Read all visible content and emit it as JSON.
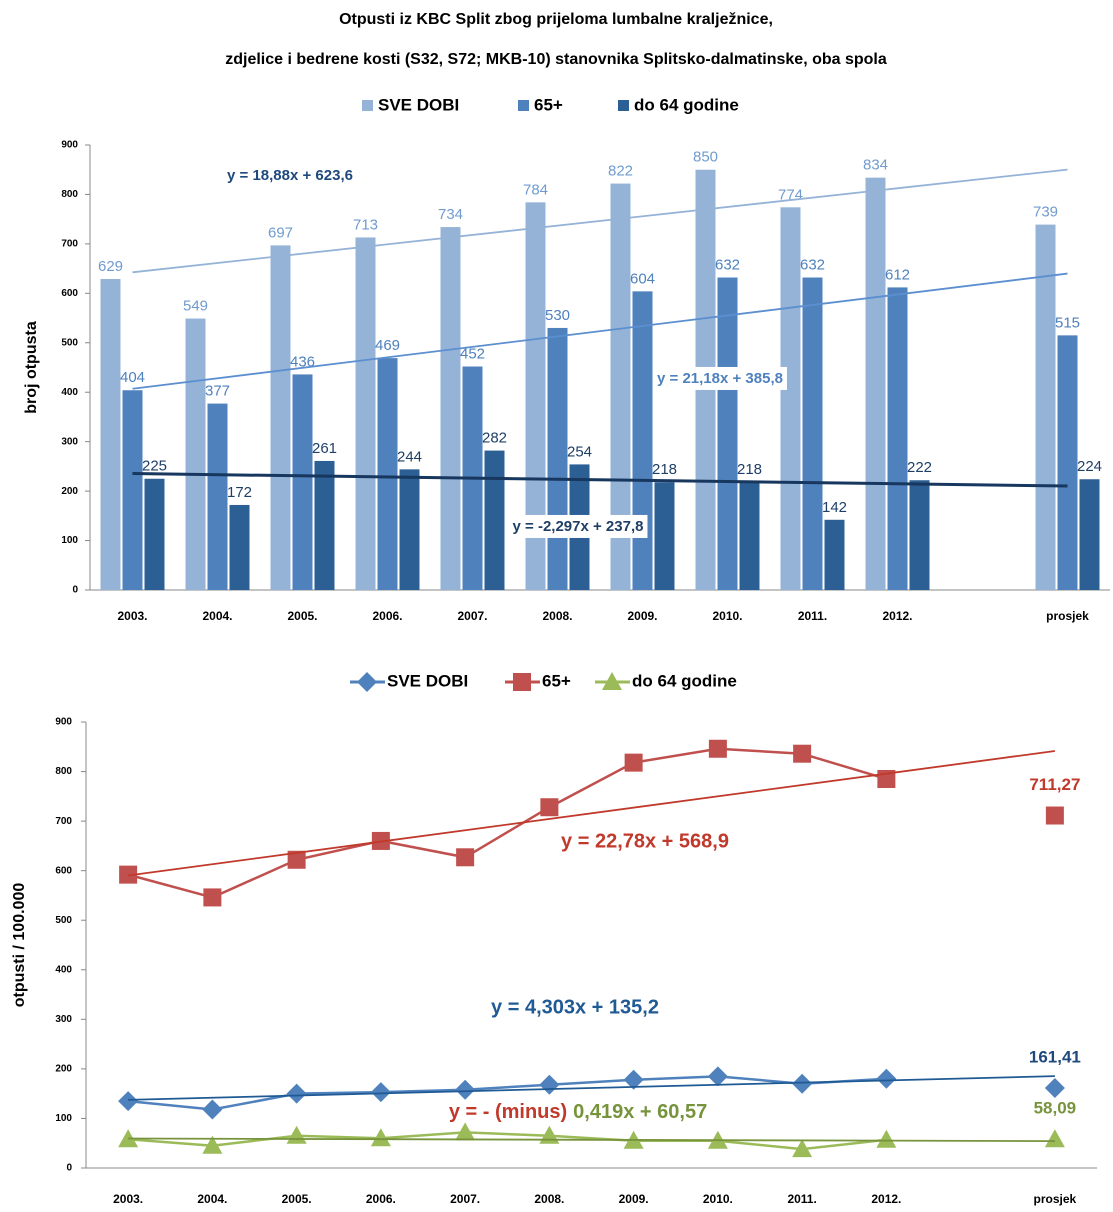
{
  "chart_data": [
    {
      "type": "bar",
      "title": [
        "Otpusti iz KBC Split zbog prijeloma lumbalne kralježnice,",
        "zdjelice i bedrene kosti (S32, S72; MKB-10) stanovnika Splitsko-dalmatinske, oba spola"
      ],
      "ylabel": "broj otpusta",
      "categories": [
        "2003.",
        "2004.",
        "2005.",
        "2006.",
        "2007.",
        "2008.",
        "2009.",
        "2010.",
        "2011.",
        "2012.",
        null,
        "prosjek"
      ],
      "series": [
        {
          "name": "SVE DOBI",
          "color": "#95b3d7",
          "label_color": "#6f9bd0",
          "trend_color": "#95b3d7",
          "trendline": true,
          "values": [
            629,
            549,
            697,
            713,
            734,
            784,
            822,
            850,
            774,
            834,
            null,
            739
          ]
        },
        {
          "name": "65+",
          "color": "#4f81bd",
          "label_color": "#4f81bd",
          "trend_color": "#5b8fd0",
          "trendline": true,
          "values": [
            404,
            377,
            436,
            469,
            452,
            530,
            604,
            632,
            632,
            612,
            null,
            515
          ]
        },
        {
          "name": "do 64 godine",
          "color": "#2c5f94",
          "label_color": "#1f3f66",
          "trend_color": "#17375e",
          "trendline": true,
          "values": [
            225,
            172,
            261,
            244,
            282,
            254,
            218,
            218,
            142,
            222,
            null,
            224
          ]
        }
      ],
      "ylim": [
        0,
        900
      ],
      "yticks": [
        0,
        100,
        200,
        300,
        400,
        500,
        600,
        700,
        800,
        900
      ],
      "legend": "top",
      "annotations": [
        {
          "text": "y = 18,88x + 623,6",
          "color": "#1f497d"
        },
        {
          "text": "y = 21,18x + 385,8",
          "color": "#4f81bd"
        },
        {
          "text": "y = -2,297x + 237,8",
          "color": "#1f3f66"
        }
      ]
    },
    {
      "type": "line",
      "ylabel": "otpusti / 100.000",
      "categories": [
        "2003.",
        "2004.",
        "2005.",
        "2006.",
        "2007.",
        "2008.",
        "2009.",
        "2010.",
        "2011.",
        "2012.",
        null,
        "prosjek"
      ],
      "series": [
        {
          "name": "SVE DOBI",
          "color": "#4f81bd",
          "marker": "diamond",
          "trend_color": "#1f5a94",
          "trendline": true,
          "values": [
            135,
            118,
            150,
            153,
            158,
            168,
            178,
            185,
            170,
            180,
            null,
            161.41
          ],
          "value_labels": [
            null,
            null,
            null,
            null,
            null,
            null,
            null,
            null,
            null,
            null,
            null,
            "161,41"
          ],
          "label_color": "#1f497d"
        },
        {
          "name": "65+",
          "color": "#c0504d",
          "marker": "square",
          "trend_color": "#c0392b",
          "trendline": true,
          "values": [
            592,
            546,
            622,
            660,
            627,
            728,
            818,
            846,
            836,
            785,
            null,
            711.27
          ],
          "value_labels": [
            null,
            null,
            null,
            null,
            null,
            null,
            null,
            null,
            null,
            null,
            null,
            "711,27"
          ],
          "label_color": "#c0392b"
        },
        {
          "name": "do 64 godine",
          "color": "#9bbb59",
          "marker": "triangle",
          "trend_color": "#77933c",
          "trendline": true,
          "values": [
            58,
            45,
            65,
            60,
            72,
            65,
            55,
            55,
            38,
            57,
            null,
            58.09
          ],
          "value_labels": [
            null,
            null,
            null,
            null,
            null,
            null,
            null,
            null,
            null,
            null,
            null,
            "58,09"
          ],
          "label_color": "#77933c"
        }
      ],
      "ylim": [
        0,
        900
      ],
      "yticks": [
        0,
        100,
        200,
        300,
        400,
        500,
        600,
        700,
        800,
        900
      ],
      "legend": "top",
      "annotations": [
        {
          "text": "y = 22,78x + 568,9",
          "color": "#c0392b"
        },
        {
          "text": "y = 4,303x + 135,2",
          "color": "#1f5a94"
        },
        {
          "parts": [
            {
              "text": "y = - (minus)",
              "color": "#c0392b"
            },
            {
              "text": "0,419x + 60,57",
              "color": "#77933c"
            }
          ]
        }
      ]
    }
  ]
}
